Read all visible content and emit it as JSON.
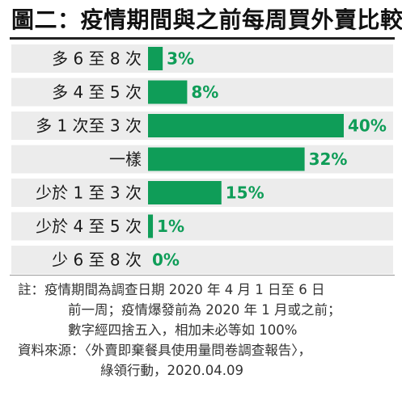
{
  "title": "圖二：疫情期間與之前每周買外賣比較",
  "chart_data": {
    "type": "bar",
    "orientation": "horizontal",
    "categories": [
      "多 6 至 8 次",
      "多 4 至 5 次",
      "多 1 次至 3 次",
      "一樣",
      "少於 1 至 3 次",
      "少於 4 至 5 次",
      "少 6 至 8 次"
    ],
    "values": [
      3,
      8,
      40,
      32,
      15,
      1,
      0
    ],
    "value_labels": [
      "3%",
      "8%",
      "40%",
      "32%",
      "15%",
      "1%",
      "0%"
    ],
    "unit": "%",
    "xlim": [
      0,
      40
    ],
    "grid": false,
    "colors": {
      "bar": "#0f9d58",
      "label": "#0f9d58",
      "row_band": "#ececec"
    }
  },
  "notes": [
    "註：疫情期間為調查日期 2020 年 4 月 1 日至 6 日",
    "前一周；疫情爆發前為 2020 年 1 月或之前；",
    "數字經四捨五入，相加未必等如 100%",
    "資料來源：〈外賣即棄餐具使用量問卷調查報告〉，",
    "綠領行動，2020.04.09"
  ]
}
